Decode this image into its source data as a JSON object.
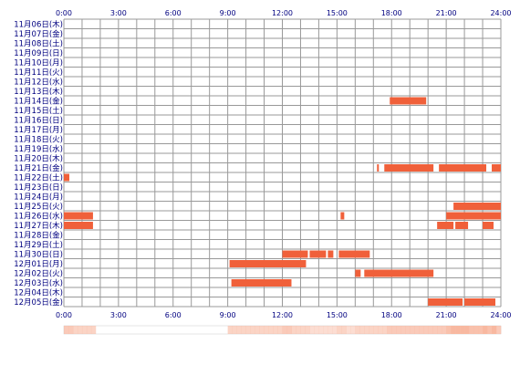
{
  "chart_data": {
    "type": "heatmap",
    "x_ticks": [
      "0:00",
      "3:00",
      "6:00",
      "9:00",
      "12:00",
      "15:00",
      "18:00",
      "21:00",
      "24:00"
    ],
    "x_range": [
      0,
      24
    ],
    "grid": true,
    "rows": [
      "11月06日(木)",
      "11月07日(金)",
      "11月08日(土)",
      "11月09日(日)",
      "11月10日(月)",
      "11月11日(火)",
      "11月12日(水)",
      "11月13日(木)",
      "11月14日(金)",
      "11月15日(土)",
      "11月16日(日)",
      "11月17日(月)",
      "11月18日(火)",
      "11月19日(水)",
      "11月20日(木)",
      "11月21日(金)",
      "11月22日(土)",
      "11月23日(日)",
      "11月24日(月)",
      "11月25日(火)",
      "11月26日(水)",
      "11月27日(木)",
      "11月28日(金)",
      "11月29日(土)",
      "11月30日(日)",
      "12月01日(月)",
      "12月02日(火)",
      "12月03日(水)",
      "12月04日(木)",
      "12月05日(金)"
    ],
    "intervals": [
      {
        "row": 8,
        "start": 17.9,
        "end": 19.9
      },
      {
        "row": 15,
        "start": 17.2,
        "end": 17.3
      },
      {
        "row": 15,
        "start": 17.6,
        "end": 20.3
      },
      {
        "row": 15,
        "start": 20.6,
        "end": 23.2
      },
      {
        "row": 15,
        "start": 23.5,
        "end": 24.0
      },
      {
        "row": 16,
        "start": 0.0,
        "end": 0.3
      },
      {
        "row": 19,
        "start": 21.4,
        "end": 24.0
      },
      {
        "row": 20,
        "start": 0.0,
        "end": 1.6
      },
      {
        "row": 20,
        "start": 15.2,
        "end": 15.4
      },
      {
        "row": 20,
        "start": 21.0,
        "end": 24.0
      },
      {
        "row": 21,
        "start": 0.0,
        "end": 1.6
      },
      {
        "row": 21,
        "start": 20.5,
        "end": 21.4
      },
      {
        "row": 21,
        "start": 21.5,
        "end": 22.2
      },
      {
        "row": 21,
        "start": 23.0,
        "end": 23.6
      },
      {
        "row": 24,
        "start": 12.0,
        "end": 13.4
      },
      {
        "row": 24,
        "start": 13.5,
        "end": 14.4
      },
      {
        "row": 24,
        "start": 14.5,
        "end": 14.8
      },
      {
        "row": 24,
        "start": 15.1,
        "end": 16.8
      },
      {
        "row": 25,
        "start": 9.1,
        "end": 13.3
      },
      {
        "row": 26,
        "start": 16.0,
        "end": 16.3
      },
      {
        "row": 26,
        "start": 16.5,
        "end": 20.3
      },
      {
        "row": 27,
        "start": 9.2,
        "end": 12.5
      },
      {
        "row": 29,
        "start": 20.0,
        "end": 21.9
      },
      {
        "row": 29,
        "start": 22.0,
        "end": 23.7
      }
    ],
    "bar_color": "#f0603a",
    "summary_color": "#f8b8a0"
  }
}
